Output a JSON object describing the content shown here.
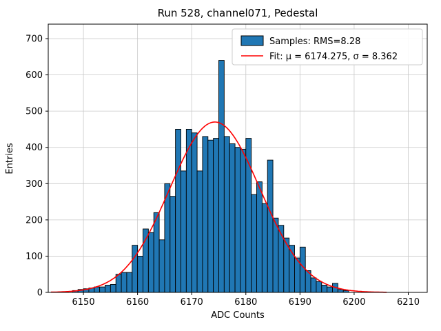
{
  "chart_data": {
    "type": "bar",
    "title": "Run 528, channel071, Pedestal",
    "xlabel": "ADC Counts",
    "ylabel": "Entries",
    "xlim": [
      6143.5,
      6213.5
    ],
    "ylim": [
      0,
      740
    ],
    "xticks": [
      6150,
      6160,
      6170,
      6180,
      6190,
      6200,
      6210
    ],
    "yticks": [
      0,
      100,
      200,
      300,
      400,
      500,
      600,
      700
    ],
    "grid": true,
    "bar_color": "#2077b4",
    "bar_edge_color": "#000000",
    "fit_color": "#ff0000",
    "bin_start": 6148,
    "bin_width": 1,
    "counts": [
      5,
      8,
      10,
      12,
      15,
      15,
      20,
      22,
      50,
      55,
      55,
      130,
      100,
      175,
      165,
      220,
      145,
      300,
      265,
      450,
      335,
      450,
      440,
      335,
      430,
      420,
      425,
      640,
      430,
      410,
      400,
      395,
      425,
      270,
      305,
      245,
      365,
      205,
      185,
      150,
      130,
      95,
      125,
      60,
      40,
      30,
      20,
      15,
      25,
      8,
      5
    ],
    "fit": {
      "mu": 6174.275,
      "sigma": 8.362,
      "amplitude": 470,
      "range": [
        6144,
        6206
      ]
    },
    "legend": [
      {
        "type": "patch",
        "label": "Samples: RMS=8.28"
      },
      {
        "type": "line",
        "label": "Fit: μ = 6174.275, σ = 8.362"
      }
    ]
  }
}
